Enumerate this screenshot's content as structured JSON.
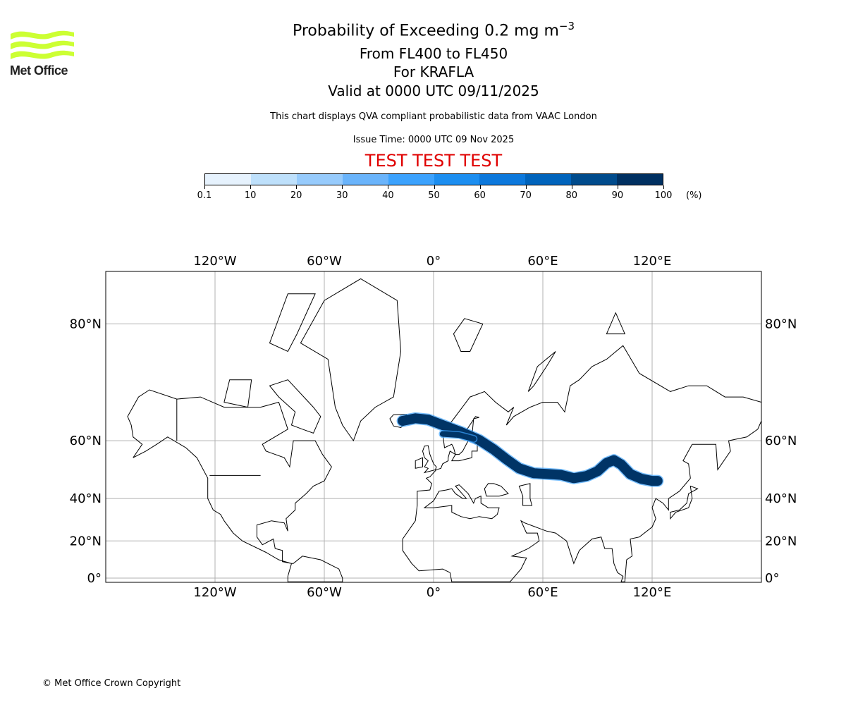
{
  "logo": {
    "text": "Met Office",
    "color": "#ccff33"
  },
  "title": {
    "line1": "Probability of Exceeding 0.2 mg m",
    "line1_sup": "−3",
    "line2": "From FL400 to FL450",
    "line3": "For KRAFLA",
    "line4": "Valid at 0000 UTC 09/11/2025"
  },
  "subtitle": "This chart displays QVA compliant probabilistic data from VAAC London",
  "issue_time": "Issue Time: 0000 UTC 09 Nov 2025",
  "test_banner": "TEST TEST TEST",
  "test_color": "#e00000",
  "colorbar": {
    "ticks": [
      "0.1",
      "10",
      "20",
      "30",
      "40",
      "50",
      "60",
      "70",
      "80",
      "90",
      "100"
    ],
    "unit": "(%)",
    "colors": [
      "#e6f2fd",
      "#bee0fb",
      "#97cbfc",
      "#6ab4fb",
      "#3ca2fd",
      "#1c8ef0",
      "#0c78dc",
      "#0063bb",
      "#004b8c",
      "#003061"
    ]
  },
  "chart_data": {
    "type": "map",
    "projection": "mercator",
    "lon_range": [
      -180,
      180
    ],
    "lat_range": [
      -2,
      84.5
    ],
    "grid": true,
    "lon_ticks": [
      {
        "v": -120,
        "label": "120°W"
      },
      {
        "v": -60,
        "label": "60°W"
      },
      {
        "v": 0,
        "label": "0°"
      },
      {
        "v": 60,
        "label": "60°E"
      },
      {
        "v": 120,
        "label": "120°E"
      }
    ],
    "lat_ticks": [
      {
        "v": 0,
        "label": "0°"
      },
      {
        "v": 20,
        "label": "20°N"
      },
      {
        "v": 40,
        "label": "40°N"
      },
      {
        "v": 60,
        "label": "60°N"
      },
      {
        "v": 80,
        "label": "80°N"
      }
    ],
    "plume": {
      "probability_class": "90-100",
      "color": "#003466",
      "edge_color": "#3ca2fd",
      "path": [
        [
          -17,
          65
        ],
        [
          -10,
          65.6
        ],
        [
          -3,
          65.3
        ],
        [
          5,
          64
        ],
        [
          15,
          62.3
        ],
        [
          25,
          60.2
        ],
        [
          33,
          57.5
        ],
        [
          40,
          54.5
        ],
        [
          47,
          51.5
        ],
        [
          55,
          49.8
        ],
        [
          63,
          49.5
        ],
        [
          70,
          49.2
        ],
        [
          77,
          48
        ],
        [
          84,
          48.8
        ],
        [
          90,
          50.5
        ],
        [
          95,
          53.3
        ],
        [
          99,
          54.2
        ],
        [
          103,
          52.8
        ],
        [
          108,
          49.5
        ],
        [
          114,
          47.8
        ],
        [
          120,
          47
        ],
        [
          123,
          47
        ]
      ],
      "branch": [
        [
          5,
          61.8
        ],
        [
          14,
          61.5
        ],
        [
          22,
          60.5
        ]
      ]
    },
    "land": [
      [
        [
          -168,
          66
        ],
        [
          -162,
          70
        ],
        [
          -156,
          71.3
        ],
        [
          -141,
          69.6
        ],
        [
          -128,
          70
        ],
        [
          -115,
          68
        ],
        [
          -95,
          68
        ],
        [
          -85,
          69
        ],
        [
          -80,
          63
        ],
        [
          -94,
          59
        ],
        [
          -92,
          57
        ],
        [
          -82,
          55
        ],
        [
          -79,
          52
        ],
        [
          -77,
          60
        ],
        [
          -65,
          60
        ],
        [
          -61,
          56
        ],
        [
          -56,
          52
        ],
        [
          -60,
          47
        ],
        [
          -66,
          45
        ],
        [
          -70,
          42
        ],
        [
          -76,
          38
        ],
        [
          -76,
          35
        ],
        [
          -81,
          31
        ],
        [
          -80,
          25
        ],
        [
          -82,
          29
        ],
        [
          -89,
          30
        ],
        [
          -97,
          28
        ],
        [
          -97,
          22
        ],
        [
          -94,
          18
        ],
        [
          -88,
          21
        ],
        [
          -87,
          16
        ],
        [
          -83,
          15
        ],
        [
          -83,
          9
        ],
        [
          -78,
          8
        ],
        [
          -77,
          8
        ],
        [
          -72,
          12
        ],
        [
          -62,
          10
        ],
        [
          -52,
          5
        ],
        [
          -50,
          0
        ],
        [
          -50,
          -2
        ],
        [
          -80,
          -2
        ],
        [
          -80,
          1
        ],
        [
          -78,
          8
        ],
        [
          -85,
          10
        ],
        [
          -92,
          14
        ],
        [
          -105,
          20
        ],
        [
          -110,
          24
        ],
        [
          -115,
          30
        ],
        [
          -117,
          33
        ],
        [
          -121,
          35
        ],
        [
          -124,
          40
        ],
        [
          -124,
          48
        ],
        [
          -130,
          55
        ],
        [
          -136,
          58
        ],
        [
          -146,
          61
        ],
        [
          -152,
          59
        ],
        [
          -158,
          57
        ],
        [
          -165,
          55
        ],
        [
          -160,
          59
        ],
        [
          -165,
          61
        ],
        [
          -166,
          64
        ],
        [
          -168,
          66
        ]
      ],
      [
        [
          -73,
          78
        ],
        [
          -60,
          82
        ],
        [
          -40,
          83.5
        ],
        [
          -20,
          82
        ],
        [
          -18,
          77
        ],
        [
          -22,
          70
        ],
        [
          -32,
          68
        ],
        [
          -40,
          65
        ],
        [
          -44,
          60
        ],
        [
          -50,
          64
        ],
        [
          -54,
          68
        ],
        [
          -58,
          76
        ],
        [
          -73,
          78
        ]
      ],
      [
        [
          -24,
          65.5
        ],
        [
          -22,
          66.4
        ],
        [
          -15,
          66.5
        ],
        [
          -13.5,
          65
        ],
        [
          -18,
          63.4
        ],
        [
          -22,
          63.8
        ]
      ],
      [
        [
          -5,
          58.5
        ],
        [
          -3,
          58.6
        ],
        [
          -2,
          56
        ],
        [
          0,
          53
        ],
        [
          1.5,
          52
        ],
        [
          1,
          51
        ],
        [
          -5,
          50
        ],
        [
          -3,
          51.5
        ],
        [
          -5,
          52
        ],
        [
          -3,
          54
        ],
        [
          -5,
          55
        ],
        [
          -6,
          57
        ]
      ],
      [
        [
          -10,
          54
        ],
        [
          -6,
          55
        ],
        [
          -6,
          52
        ],
        [
          -10,
          51.5
        ]
      ],
      [
        [
          -9,
          43
        ],
        [
          -9,
          37
        ],
        [
          -10,
          30
        ],
        [
          -17,
          21
        ],
        [
          -17,
          15
        ],
        [
          -12,
          8
        ],
        [
          -8,
          4
        ],
        [
          5,
          5
        ],
        [
          9,
          3
        ],
        [
          10,
          -2
        ],
        [
          42,
          -2
        ],
        [
          48,
          5
        ],
        [
          51,
          11
        ],
        [
          43,
          12
        ],
        [
          52,
          16
        ],
        [
          58,
          20
        ],
        [
          57,
          24
        ],
        [
          51,
          24
        ],
        [
          48,
          30
        ],
        [
          50,
          29
        ],
        [
          56,
          27
        ],
        [
          62,
          25
        ],
        [
          67,
          24
        ],
        [
          73,
          20
        ],
        [
          77,
          8
        ],
        [
          80,
          15
        ],
        [
          87,
          21
        ],
        [
          92,
          22
        ],
        [
          94,
          16
        ],
        [
          98,
          16
        ],
        [
          99,
          8
        ],
        [
          101,
          3
        ],
        [
          104,
          1
        ],
        [
          103,
          -2
        ],
        [
          105,
          -2
        ],
        [
          106,
          10
        ],
        [
          109,
          12
        ],
        [
          108,
          21
        ],
        [
          113,
          22
        ],
        [
          120,
          27
        ],
        [
          122,
          31
        ],
        [
          120,
          36
        ],
        [
          122,
          40
        ],
        [
          126,
          38
        ],
        [
          129,
          35
        ],
        [
          129,
          40
        ],
        [
          135,
          43
        ],
        [
          141,
          48
        ],
        [
          140,
          53
        ],
        [
          137,
          54
        ],
        [
          142,
          59
        ],
        [
          155,
          59
        ],
        [
          156,
          51
        ],
        [
          163,
          57
        ],
        [
          162,
          60
        ],
        [
          172,
          61
        ],
        [
          178,
          63
        ],
        [
          180,
          65
        ],
        [
          180,
          69
        ],
        [
          170,
          70
        ],
        [
          160,
          70
        ],
        [
          150,
          72
        ],
        [
          140,
          72
        ],
        [
          130,
          71
        ],
        [
          113,
          74
        ],
        [
          104,
          77.7
        ],
        [
          95,
          76
        ],
        [
          87,
          75
        ],
        [
          80,
          73
        ],
        [
          75,
          72
        ],
        [
          72,
          67
        ],
        [
          68,
          69
        ],
        [
          60,
          69
        ],
        [
          53,
          68
        ],
        [
          44,
          66
        ],
        [
          40,
          64
        ],
        [
          44,
          68
        ],
        [
          41,
          67
        ],
        [
          34,
          69
        ],
        [
          28,
          71
        ],
        [
          20,
          70
        ],
        [
          12,
          66
        ],
        [
          5,
          62
        ],
        [
          6,
          58
        ],
        [
          10,
          59
        ],
        [
          11,
          58
        ],
        [
          12,
          56
        ],
        [
          9,
          57
        ],
        [
          8,
          55
        ],
        [
          8,
          54
        ],
        [
          5,
          53
        ],
        [
          4,
          51.5
        ],
        [
          1.5,
          51
        ],
        [
          -2,
          48.5
        ],
        [
          -4,
          48
        ],
        [
          -1,
          46
        ],
        [
          -2,
          43.5
        ],
        [
          -9,
          43
        ]
      ],
      [
        [
          11,
          79
        ],
        [
          17,
          80.5
        ],
        [
          27,
          80
        ],
        [
          20,
          77
        ],
        [
          15,
          77
        ]
      ],
      [
        [
          52,
          71
        ],
        [
          57,
          75
        ],
        [
          67,
          77
        ],
        [
          62,
          75
        ],
        [
          55,
          72
        ]
      ],
      [
        [
          95,
          79
        ],
        [
          105,
          79
        ],
        [
          100,
          81
        ]
      ],
      [
        [
          -90,
          72
        ],
        [
          -80,
          73
        ],
        [
          -66,
          68
        ],
        [
          -62,
          66
        ],
        [
          -66,
          62
        ],
        [
          -72,
          63
        ],
        [
          -78,
          64
        ],
        [
          -76,
          67
        ],
        [
          -85,
          70
        ]
      ],
      [
        [
          -90,
          78
        ],
        [
          -80,
          82.5
        ],
        [
          -65,
          82.5
        ],
        [
          -75,
          79
        ],
        [
          -80,
          77
        ]
      ],
      [
        [
          -115,
          69
        ],
        [
          -102,
          68
        ],
        [
          -100,
          73
        ],
        [
          -112,
          73
        ]
      ],
      [
        [
          130,
          31
        ],
        [
          133,
          34
        ],
        [
          140,
          36
        ],
        [
          142,
          40
        ],
        [
          141,
          45
        ],
        [
          145,
          44
        ],
        [
          140,
          42
        ],
        [
          139,
          38
        ],
        [
          135,
          35
        ],
        [
          130,
          34
        ]
      ]
    ],
    "water": [
      [
        [
          10,
          54
        ],
        [
          14,
          54
        ],
        [
          21,
          55
        ],
        [
          21,
          57
        ],
        [
          24,
          57
        ],
        [
          24,
          59
        ],
        [
          30,
          60
        ],
        [
          24,
          60.5
        ],
        [
          21,
          61
        ],
        [
          22,
          65.5
        ],
        [
          25,
          65.8
        ],
        [
          23,
          66
        ],
        [
          17,
          62
        ],
        [
          19,
          60
        ],
        [
          16,
          57
        ],
        [
          14,
          56
        ],
        [
          12,
          56
        ]
      ],
      [
        [
          -5,
          36
        ],
        [
          0,
          39
        ],
        [
          3,
          43
        ],
        [
          7,
          43.5
        ],
        [
          10,
          44
        ],
        [
          12,
          42
        ],
        [
          16,
          40
        ],
        [
          18,
          40
        ],
        [
          12,
          45
        ],
        [
          14,
          45.5
        ],
        [
          19,
          42
        ],
        [
          22,
          38
        ],
        [
          23,
          40
        ],
        [
          26,
          41
        ],
        [
          26,
          38
        ],
        [
          30,
          36
        ],
        [
          36,
          36
        ],
        [
          35,
          33
        ],
        [
          32,
          31
        ],
        [
          25,
          32
        ],
        [
          20,
          31
        ],
        [
          15,
          32
        ],
        [
          10,
          34
        ],
        [
          10,
          37
        ],
        [
          0,
          36
        ]
      ],
      [
        [
          28,
          44
        ],
        [
          30,
          46
        ],
        [
          33,
          46
        ],
        [
          37,
          45
        ],
        [
          41,
          42
        ],
        [
          36,
          41
        ],
        [
          29,
          41
        ]
      ],
      [
        [
          47,
          45
        ],
        [
          53,
          46
        ],
        [
          53,
          40
        ],
        [
          54,
          37
        ],
        [
          49,
          37
        ],
        [
          49,
          41
        ]
      ]
    ],
    "borders": [
      [
        [
          -141,
          60
        ],
        [
          -141,
          69.6
        ]
      ],
      [
        [
          -123,
          49
        ],
        [
          -95,
          49
        ]
      ]
    ]
  },
  "copyright": "© Met Office Crown Copyright"
}
